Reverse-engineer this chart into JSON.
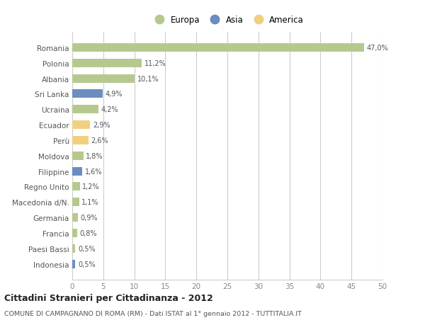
{
  "countries": [
    "Romania",
    "Polonia",
    "Albania",
    "Sri Lanka",
    "Ucraina",
    "Ecuador",
    "Perù",
    "Moldova",
    "Filippine",
    "Regno Unito",
    "Macedonia d/N.",
    "Germania",
    "Francia",
    "Paesi Bassi",
    "Indonesia"
  ],
  "values": [
    47.0,
    11.2,
    10.1,
    4.9,
    4.2,
    2.9,
    2.6,
    1.8,
    1.6,
    1.2,
    1.1,
    0.9,
    0.8,
    0.5,
    0.5
  ],
  "labels": [
    "47,0%",
    "11,2%",
    "10,1%",
    "4,9%",
    "4,2%",
    "2,9%",
    "2,6%",
    "1,8%",
    "1,6%",
    "1,2%",
    "1,1%",
    "0,9%",
    "0,8%",
    "0,5%",
    "0,5%"
  ],
  "continents": [
    "Europa",
    "Europa",
    "Europa",
    "Asia",
    "Europa",
    "America",
    "America",
    "Europa",
    "Asia",
    "Europa",
    "Europa",
    "Europa",
    "Europa",
    "Europa",
    "Asia"
  ],
  "colors": {
    "Europa": "#b5c98e",
    "Asia": "#6b8dbf",
    "America": "#f0d080"
  },
  "xlim": [
    0,
    50
  ],
  "xticks": [
    0,
    5,
    10,
    15,
    20,
    25,
    30,
    35,
    40,
    45,
    50
  ],
  "title": "Cittadini Stranieri per Cittadinanza - 2012",
  "subtitle": "COMUNE DI CAMPAGNANO DI ROMA (RM) - Dati ISTAT al 1° gennaio 2012 - TUTTITALIA.IT",
  "bg_color": "#ffffff",
  "grid_color": "#cccccc",
  "bar_height": 0.55
}
